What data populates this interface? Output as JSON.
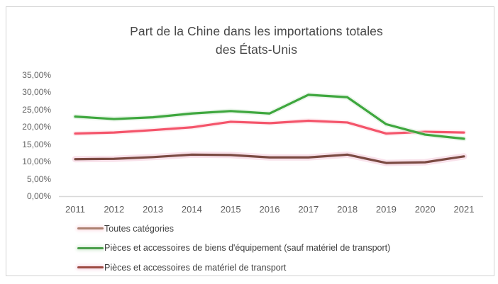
{
  "title": {
    "line1": "Part de la Chine dans les importations totales",
    "line2": "des États-Unis"
  },
  "chart_data": {
    "type": "line",
    "title": "Part de la Chine dans les importations totales des États-Unis",
    "categories": [
      "2011",
      "2012",
      "2013",
      "2014",
      "2015",
      "2016",
      "2017",
      "2018",
      "2019",
      "2020",
      "2021"
    ],
    "xlabel": "",
    "ylabel": "",
    "ylim": [
      0,
      35
    ],
    "grid": false,
    "legend_position": "bottom-left",
    "y_ticks": [
      {
        "label": "35,00%",
        "value": 35
      },
      {
        "label": "30,00%",
        "value": 30
      },
      {
        "label": "25,00%",
        "value": 25
      },
      {
        "label": "20,00%",
        "value": 20
      },
      {
        "label": "15,00%",
        "value": 15
      },
      {
        "label": "10,00%",
        "value": 10
      },
      {
        "label": "5,00%",
        "value": 5
      },
      {
        "label": "0,00%",
        "value": 0
      }
    ],
    "series": [
      {
        "name": "Toutes catégories",
        "color": "#F4546A",
        "legend_color": "#AC8170",
        "glow": "#FDE2E8",
        "values": [
          18.1,
          18.4,
          19.1,
          19.9,
          21.5,
          21.1,
          21.8,
          21.3,
          18.1,
          18.6,
          18.4
        ]
      },
      {
        "name": "Pièces et accessoires de biens d'équipement (sauf matériel de transport)",
        "color": "#3EA73E",
        "legend_color": "#4A9E4A",
        "glow": "#DDEFDD",
        "values": [
          23.0,
          22.3,
          22.8,
          23.9,
          24.6,
          23.9,
          29.3,
          28.6,
          20.8,
          17.8,
          16.6
        ]
      },
      {
        "name": "Pièces et accessoires de matériel de transport",
        "color": "#7B4A42",
        "legend_color": "#9D4B42",
        "glow": "#F8DDE8",
        "values": [
          10.7,
          10.8,
          11.3,
          12.0,
          11.9,
          11.2,
          11.2,
          12.0,
          9.6,
          9.8,
          11.5
        ]
      }
    ]
  },
  "colors": {
    "card_border": "#D2D2D2",
    "axis_line": "#D9D9D9",
    "title_text": "#474747",
    "tick_text": "#636363",
    "legend_text": "#3F3F3F",
    "background": "#FFFFFF"
  }
}
